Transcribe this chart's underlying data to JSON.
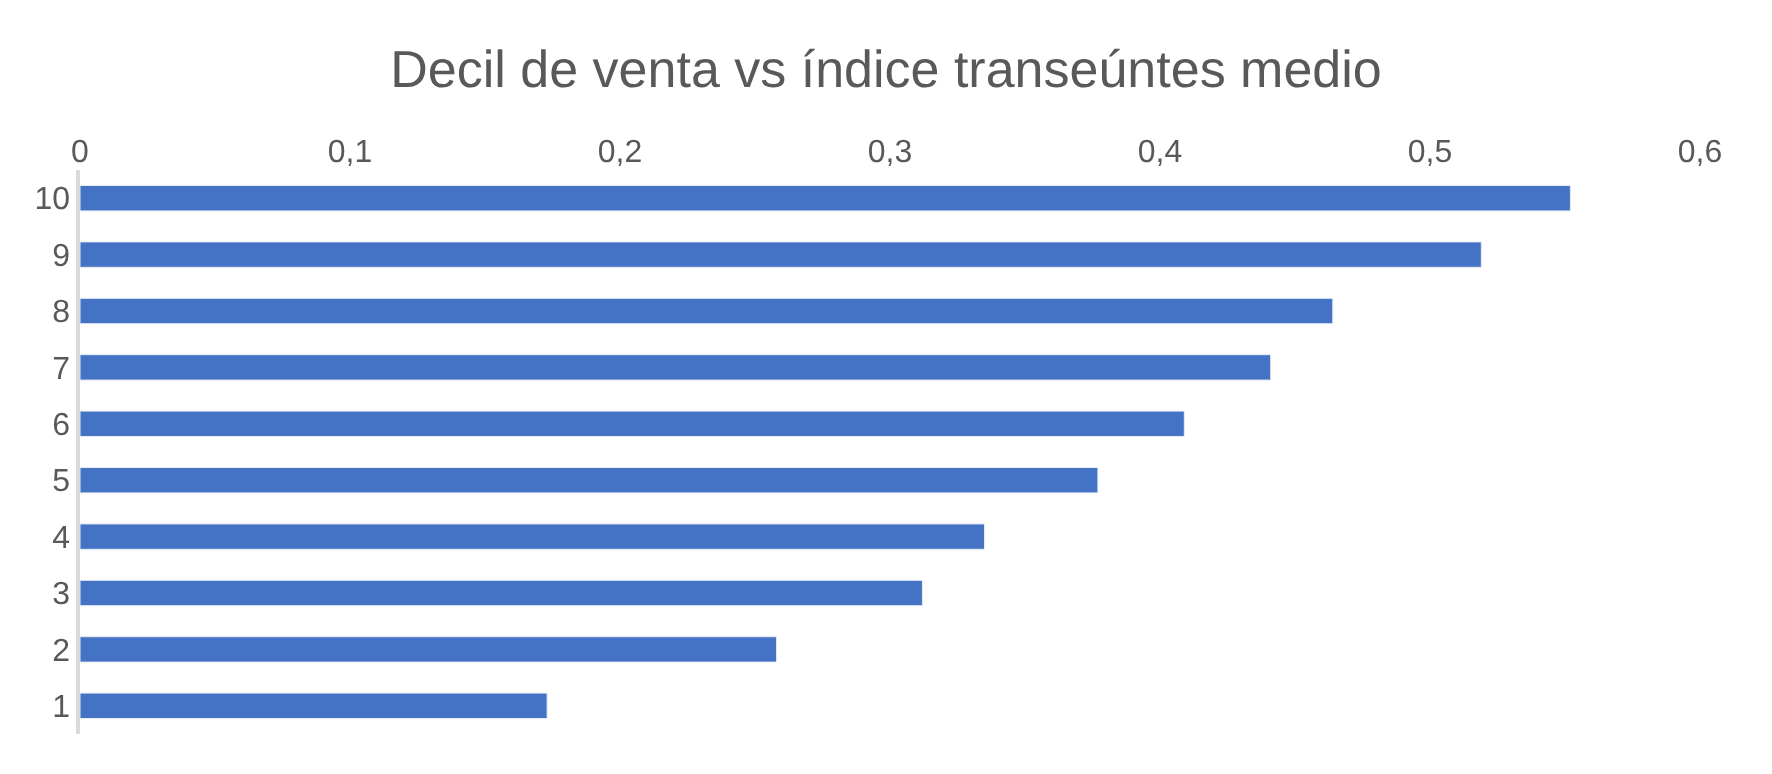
{
  "chart_data": {
    "type": "bar",
    "orientation": "horizontal",
    "title": "Decil de venta vs índice transeúntes medio",
    "categories": [
      "10",
      "9",
      "8",
      "7",
      "6",
      "5",
      "4",
      "3",
      "2",
      "1"
    ],
    "values": [
      0.552,
      0.519,
      0.464,
      0.441,
      0.409,
      0.377,
      0.335,
      0.312,
      0.258,
      0.173
    ],
    "color": "#4472c4",
    "xlim": [
      0,
      0.6
    ],
    "xticks": [
      0,
      {
        "value": 0.1,
        "label": "0,1"
      },
      {
        "value": 0.2,
        "label": "0,2"
      },
      {
        "value": 0.3,
        "label": "0,3"
      },
      {
        "value": 0.4,
        "label": "0,4"
      },
      {
        "value": 0.5,
        "label": "0,5"
      },
      {
        "value": 0.6,
        "label": "0,6"
      }
    ],
    "xlabel": null
  }
}
